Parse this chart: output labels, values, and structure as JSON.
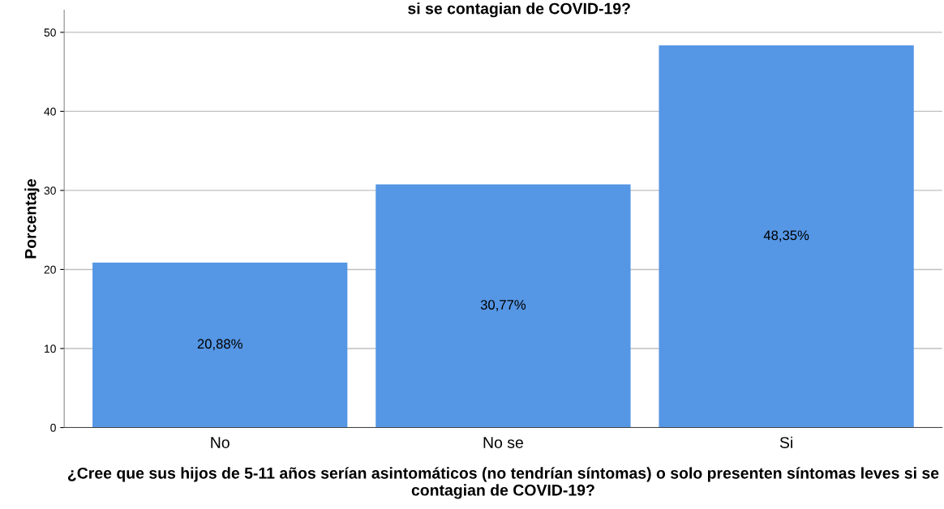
{
  "chart_data": {
    "type": "bar",
    "title": "si se contagian de COVID-19?",
    "xlabel": "¿Cree que sus hijos de 5-11 años serían asintomáticos (no tendrían síntomas) o solo presenten síntomas leves si se contagian de COVID-19?",
    "ylabel": "Porcentaje",
    "categories": [
      "No",
      "No se",
      "Si"
    ],
    "values": [
      20.88,
      30.77,
      48.35
    ],
    "value_labels": [
      "20,88%",
      "30,77%",
      "48,35%"
    ],
    "color": "#5596e5",
    "ylim": [
      0,
      52.8
    ],
    "yticks": [
      0,
      10,
      20,
      30,
      40,
      50
    ],
    "grid": "y",
    "legend": false
  }
}
